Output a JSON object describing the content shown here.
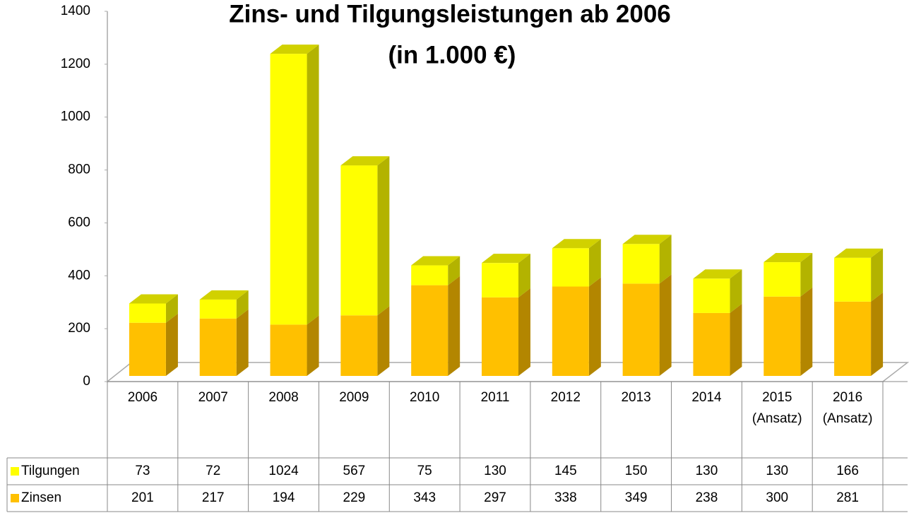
{
  "chart_data": {
    "type": "bar",
    "stacked": true,
    "title": "Zins- und Tilgungsleistungen ab 2006",
    "subtitle": "(in 1.000 €)",
    "categories": [
      "2006",
      "2007",
      "2008",
      "2009",
      "2010",
      "2011",
      "2012",
      "2013",
      "2014",
      "2015 (Ansatz)",
      "2016 (Ansatz)"
    ],
    "series": [
      {
        "name": "Zinsen",
        "color": "#ffc000",
        "values": [
          201,
          217,
          194,
          229,
          343,
          297,
          338,
          349,
          238,
          300,
          281
        ]
      },
      {
        "name": "Tilgungen",
        "color": "#ffff00",
        "values": [
          73,
          72,
          1024,
          567,
          75,
          130,
          145,
          150,
          130,
          130,
          166
        ]
      }
    ],
    "ylim": [
      0,
      1400
    ],
    "yticks": [
      0,
      200,
      400,
      600,
      800,
      1000,
      1200,
      1400
    ]
  }
}
